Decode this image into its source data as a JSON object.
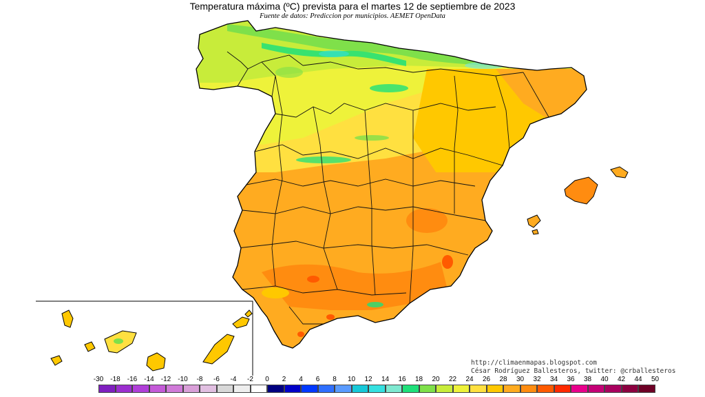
{
  "map": {
    "title": "Temperatura máxima (ºC) prevista para el martes 12 de septiembre de 2023",
    "subtitle": "Fuente de datos: Prediccion por municipios. AEMET OpenData",
    "credit_url": "http://climaenmapas.blogspot.com",
    "credit_author": "César Rodríguez Ballesteros, twitter: @crballesteros"
  },
  "legend": {
    "labels": [
      "-30",
      "-18",
      "-16",
      "-14",
      "-12",
      "-10",
      "-8",
      "-6",
      "-4",
      "-2",
      "0",
      "2",
      "4",
      "6",
      "8",
      "10",
      "12",
      "14",
      "16",
      "18",
      "20",
      "22",
      "24",
      "26",
      "28",
      "30",
      "32",
      "34",
      "36",
      "38",
      "40",
      "42",
      "44",
      "50"
    ],
    "colors": [
      "#7f1fbf",
      "#9b2fcf",
      "#b03fd8",
      "#c45ad8",
      "#d07ad8",
      "#d99fd8",
      "#e1bfe1",
      "#d8d8d8",
      "#eeeeee",
      "#ffffff",
      "#000080",
      "#0000c8",
      "#0038ff",
      "#2f6fff",
      "#5a9bff",
      "#17c8d8",
      "#35e0e0",
      "#7ee8d0",
      "#1fe07a",
      "#7fe04a",
      "#c8ec3a",
      "#eef23a",
      "#ffe040",
      "#ffc800",
      "#ffab20",
      "#ff8c10",
      "#ff5a00",
      "#ff2a00",
      "#e8008c",
      "#c40076",
      "#a8005e",
      "#8c0040",
      "#6e0026"
    ]
  }
}
